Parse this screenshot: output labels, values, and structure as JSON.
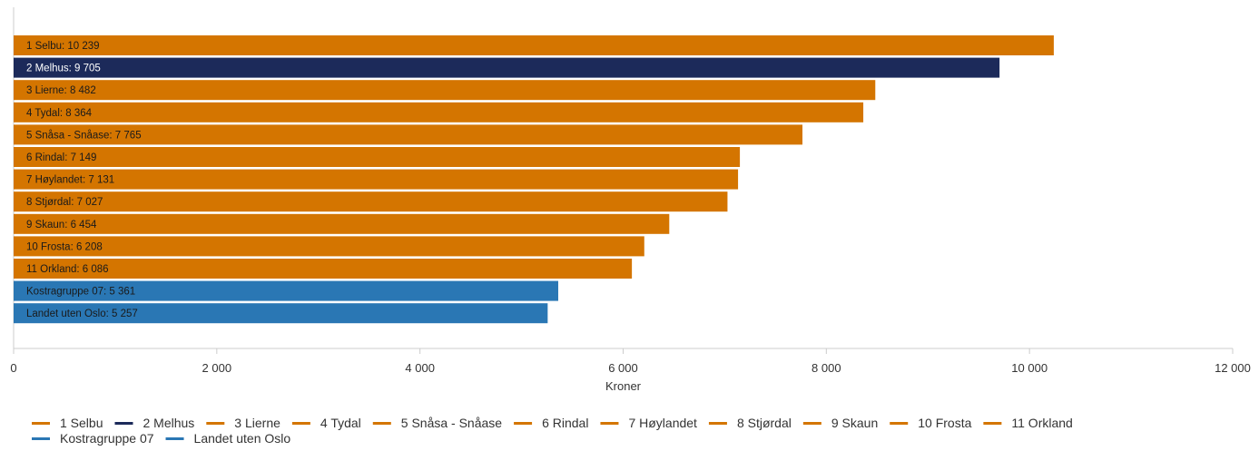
{
  "chart_data": {
    "type": "bar",
    "orientation": "horizontal",
    "categories": [
      "1 Selbu",
      "2 Melhus",
      "3 Lierne",
      "4 Tydal",
      "5 Snåsa - Snåase",
      "6 Rindal",
      "7 Høylandet",
      "8 Stjørdal",
      "9 Skaun",
      "10 Frosta",
      "11 Orkland",
      "Kostragruppe 07",
      "Landet uten Oslo"
    ],
    "values": [
      10239,
      9705,
      8482,
      8364,
      7765,
      7149,
      7131,
      7027,
      6454,
      6208,
      6086,
      5361,
      5257
    ],
    "bar_labels": [
      "1 Selbu: 10 239",
      "2 Melhus: 9 705",
      "3 Lierne: 8 482",
      "4 Tydal: 8 364",
      "5 Snåsa - Snåase: 7 765",
      "6 Rindal: 7 149",
      "7 Høylandet: 7 131",
      "8 Stjørdal: 7 027",
      "9 Skaun: 6 454",
      "10 Frosta: 6 208",
      "11 Orkland: 6 086",
      "Kostragruppe 07: 5 361",
      "Landet uten Oslo: 5 257"
    ],
    "colors": [
      "#d47500",
      "#1c2a5a",
      "#d47500",
      "#d47500",
      "#d47500",
      "#d47500",
      "#d47500",
      "#d47500",
      "#d47500",
      "#d47500",
      "#d47500",
      "#2a77b4",
      "#2a77b4"
    ],
    "dark_label_indices": [
      1
    ],
    "xlabel": "Kroner",
    "xlim": [
      0,
      12000
    ],
    "x_ticks": [
      0,
      2000,
      4000,
      6000,
      8000,
      10000,
      12000
    ],
    "x_tick_labels": [
      "0",
      "2 000",
      "4 000",
      "6 000",
      "8 000",
      "10 000",
      "12 000"
    ],
    "grid": false,
    "legend_position": "bottom",
    "legend_row1": [
      "1 Selbu",
      "2 Melhus",
      "3 Lierne",
      "4 Tydal",
      "5 Snåsa - Snåase",
      "6 Rindal",
      "7 Høylandet",
      "8 Stjørdal",
      "9 Skaun",
      "10 Frosta",
      "11 Orkland"
    ],
    "legend_row2": [
      "Kostragruppe 07",
      "Landet uten Oslo"
    ]
  }
}
